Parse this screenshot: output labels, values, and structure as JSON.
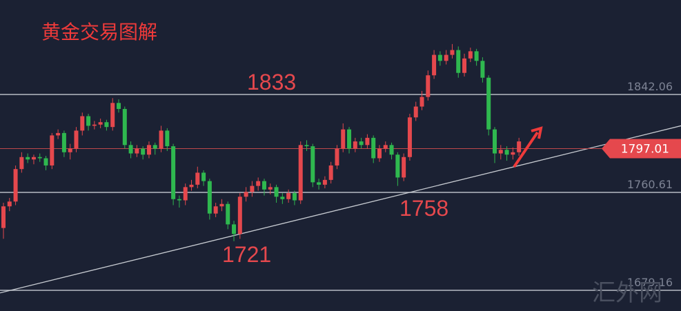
{
  "chart_data": {
    "type": "candlestick",
    "title": "黄金交易图解",
    "ylim": [
      1661.95,
      1920.64
    ],
    "yticks": [
      1842.06,
      1760.61,
      1679.16
    ],
    "grid": true,
    "up_color": "#e5484d",
    "down_color": "#2fb84f",
    "candles": [
      [
        1731,
        1752,
        1722,
        1749
      ],
      [
        1749,
        1756,
        1745,
        1753
      ],
      [
        1753,
        1783,
        1750,
        1780
      ],
      [
        1780,
        1794,
        1777,
        1790
      ],
      [
        1790,
        1793,
        1785,
        1788
      ],
      [
        1788,
        1792,
        1784,
        1790
      ],
      [
        1790,
        1793,
        1786,
        1789
      ],
      [
        1789,
        1791,
        1779,
        1783
      ],
      [
        1783,
        1810,
        1780,
        1808
      ],
      [
        1808,
        1813,
        1805,
        1810
      ],
      [
        1810,
        1812,
        1790,
        1794
      ],
      [
        1794,
        1801,
        1788,
        1797
      ],
      [
        1797,
        1815,
        1794,
        1812
      ],
      [
        1812,
        1827,
        1808,
        1824
      ],
      [
        1824,
        1826,
        1812,
        1816
      ],
      [
        1816,
        1820,
        1813,
        1817
      ],
      [
        1817,
        1822,
        1814,
        1819
      ],
      [
        1819,
        1821,
        1812,
        1815
      ],
      [
        1815,
        1839,
        1812,
        1835
      ],
      [
        1835,
        1838,
        1827,
        1830
      ],
      [
        1830,
        1832,
        1797,
        1800
      ],
      [
        1800,
        1803,
        1789,
        1793
      ],
      [
        1793,
        1800,
        1790,
        1797
      ],
      [
        1797,
        1799,
        1788,
        1792
      ],
      [
        1792,
        1803,
        1789,
        1800
      ],
      [
        1800,
        1802,
        1792,
        1797
      ],
      [
        1797,
        1816,
        1794,
        1812
      ],
      [
        1812,
        1814,
        1795,
        1799
      ],
      [
        1799,
        1801,
        1750,
        1755
      ],
      [
        1755,
        1758,
        1748,
        1754
      ],
      [
        1754,
        1768,
        1750,
        1765
      ],
      [
        1765,
        1771,
        1762,
        1767
      ],
      [
        1767,
        1782,
        1764,
        1777
      ],
      [
        1777,
        1779,
        1766,
        1770
      ],
      [
        1770,
        1772,
        1738,
        1743
      ],
      [
        1743,
        1752,
        1740,
        1749
      ],
      [
        1749,
        1755,
        1745,
        1751
      ],
      [
        1751,
        1753,
        1730,
        1734
      ],
      [
        1734,
        1737,
        1720,
        1726
      ],
      [
        1726,
        1760,
        1722,
        1757
      ],
      [
        1757,
        1765,
        1753,
        1761
      ],
      [
        1761,
        1770,
        1757,
        1766
      ],
      [
        1766,
        1773,
        1762,
        1770
      ],
      [
        1770,
        1772,
        1758,
        1763
      ],
      [
        1763,
        1768,
        1759,
        1765
      ],
      [
        1765,
        1767,
        1752,
        1757
      ],
      [
        1757,
        1760,
        1751,
        1755
      ],
      [
        1755,
        1763,
        1752,
        1760
      ],
      [
        1760,
        1762,
        1750,
        1754
      ],
      [
        1754,
        1803,
        1751,
        1800
      ],
      [
        1800,
        1804,
        1795,
        1799
      ],
      [
        1799,
        1801,
        1765,
        1769
      ],
      [
        1769,
        1772,
        1763,
        1767
      ],
      [
        1767,
        1774,
        1764,
        1771
      ],
      [
        1771,
        1786,
        1768,
        1783
      ],
      [
        1783,
        1800,
        1780,
        1797
      ],
      [
        1797,
        1818,
        1794,
        1813
      ],
      [
        1813,
        1815,
        1793,
        1797
      ],
      [
        1797,
        1806,
        1794,
        1803
      ],
      [
        1803,
        1806,
        1797,
        1800
      ],
      [
        1800,
        1809,
        1797,
        1806
      ],
      [
        1806,
        1808,
        1785,
        1789
      ],
      [
        1789,
        1800,
        1786,
        1797
      ],
      [
        1797,
        1803,
        1794,
        1800
      ],
      [
        1800,
        1802,
        1788,
        1792
      ],
      [
        1792,
        1794,
        1766,
        1773
      ],
      [
        1773,
        1793,
        1770,
        1790
      ],
      [
        1790,
        1826,
        1787,
        1823
      ],
      [
        1823,
        1836,
        1820,
        1832
      ],
      [
        1832,
        1845,
        1829,
        1840
      ],
      [
        1840,
        1862,
        1837,
        1858
      ],
      [
        1858,
        1879,
        1855,
        1875
      ],
      [
        1875,
        1878,
        1866,
        1870
      ],
      [
        1870,
        1879,
        1867,
        1875
      ],
      [
        1875,
        1884,
        1872,
        1879
      ],
      [
        1879,
        1882,
        1856,
        1860
      ],
      [
        1860,
        1876,
        1857,
        1872
      ],
      [
        1872,
        1881,
        1869,
        1878
      ],
      [
        1878,
        1880,
        1866,
        1870
      ],
      [
        1870,
        1873,
        1852,
        1856
      ],
      [
        1856,
        1858,
        1808,
        1813
      ],
      [
        1813,
        1815,
        1785,
        1793
      ],
      [
        1793,
        1800,
        1788,
        1796
      ],
      [
        1796,
        1799,
        1787,
        1792
      ],
      [
        1792,
        1798,
        1788,
        1794
      ],
      [
        1794,
        1806,
        1791,
        1803
      ]
    ],
    "trendline": [
      1677,
      1816
    ],
    "current_price": 1797.01,
    "annotations": [
      1833,
      1758,
      1721
    ],
    "watermark": "汇外网"
  }
}
